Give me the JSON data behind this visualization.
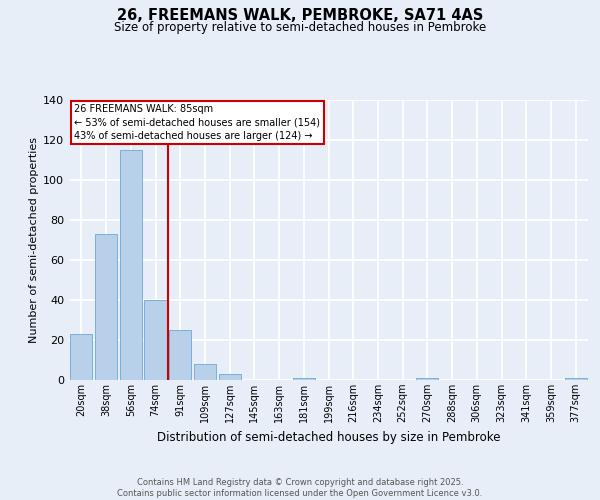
{
  "title_line1": "26, FREEMANS WALK, PEMBROKE, SA71 4AS",
  "title_line2": "Size of property relative to semi-detached houses in Pembroke",
  "xlabel": "Distribution of semi-detached houses by size in Pembroke",
  "ylabel": "Number of semi-detached properties",
  "bar_labels": [
    "20sqm",
    "38sqm",
    "56sqm",
    "74sqm",
    "91sqm",
    "109sqm",
    "127sqm",
    "145sqm",
    "163sqm",
    "181sqm",
    "199sqm",
    "216sqm",
    "234sqm",
    "252sqm",
    "270sqm",
    "288sqm",
    "306sqm",
    "323sqm",
    "341sqm",
    "359sqm",
    "377sqm"
  ],
  "bar_values": [
    23,
    73,
    115,
    40,
    25,
    8,
    3,
    0,
    0,
    1,
    0,
    0,
    0,
    0,
    1,
    0,
    0,
    0,
    0,
    0,
    1
  ],
  "bar_color": "#b8d0ea",
  "bar_edgecolor": "#7aafd4",
  "property_bin_index": 4,
  "annotation_text": "26 FREEMANS WALK: 85sqm\n← 53% of semi-detached houses are smaller (154)\n43% of semi-detached houses are larger (124) →",
  "vline_color": "#cc0000",
  "ylim": [
    0,
    140
  ],
  "yticks": [
    0,
    20,
    40,
    60,
    80,
    100,
    120,
    140
  ],
  "footer_text": "Contains HM Land Registry data © Crown copyright and database right 2025.\nContains public sector information licensed under the Open Government Licence v3.0.",
  "background_color": "#e8eef8",
  "grid_color": "#ffffff"
}
